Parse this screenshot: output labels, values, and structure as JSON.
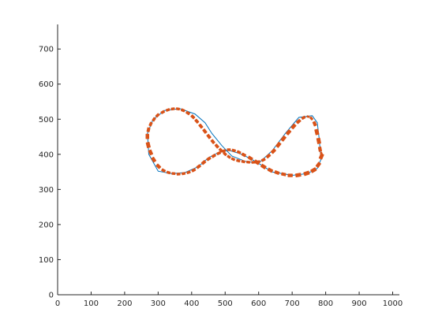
{
  "chart_data": {
    "type": "line",
    "title": "",
    "xlabel": "",
    "ylabel": "",
    "xlim": [
      0,
      1020
    ],
    "ylim": [
      0,
      770
    ],
    "xticks": [
      0,
      100,
      200,
      300,
      400,
      500,
      600,
      700,
      800,
      900,
      1000
    ],
    "yticks": [
      0,
      100,
      200,
      300,
      400,
      500,
      600,
      700
    ],
    "xtick_labels": [
      "0",
      "100",
      "200",
      "300",
      "400",
      "500",
      "600",
      "700",
      "800",
      "900",
      "1000"
    ],
    "ytick_labels": [
      "0",
      "100",
      "200",
      "300",
      "400",
      "500",
      "600",
      "700"
    ],
    "grid": false,
    "box": false,
    "series": [
      {
        "color": "#0072BD",
        "style": "line",
        "x": [
          790,
          775,
          745,
          700,
          640,
          590,
          550,
          510,
          480,
          450,
          420,
          380,
          340,
          300,
          272,
          268,
          285,
          320,
          365,
          410,
          440,
          460,
          490,
          520,
          560,
          600,
          640,
          680,
          720,
          760,
          775,
          780,
          785,
          790
        ],
        "y": [
          395,
          360,
          345,
          340,
          350,
          380,
          400,
          412,
          405,
          390,
          365,
          348,
          345,
          352,
          400,
          460,
          500,
          525,
          530,
          515,
          490,
          460,
          425,
          395,
          380,
          375,
          410,
          460,
          505,
          510,
          490,
          450,
          400,
          395
        ]
      },
      {
        "color": "#D95319",
        "style": "quiver",
        "note": "orange arrow field along the figure-eight",
        "x": [
          790,
          782,
          770,
          750,
          725,
          700,
          680,
          660,
          640,
          620,
          600,
          580,
          560,
          545,
          530,
          515,
          500,
          485,
          470,
          455,
          440,
          425,
          410,
          395,
          380,
          365,
          350,
          335,
          320,
          305,
          290,
          280,
          272,
          268,
          270,
          276,
          285,
          295,
          310,
          325,
          340,
          355,
          370,
          385,
          400,
          412,
          424,
          436,
          448,
          460,
          472,
          484,
          496,
          508,
          520,
          535,
          550,
          565,
          580,
          595,
          610,
          625,
          640,
          655,
          670,
          685,
          700,
          715,
          730,
          745,
          755,
          765,
          772,
          778,
          782,
          786
        ],
        "y": [
          400,
          375,
          358,
          348,
          342,
          340,
          342,
          346,
          352,
          362,
          374,
          386,
          396,
          404,
          410,
          413,
          411,
          405,
          398,
          390,
          380,
          368,
          357,
          350,
          346,
          344,
          345,
          347,
          352,
          362,
          380,
          400,
          420,
          445,
          465,
          482,
          496,
          508,
          518,
          525,
          529,
          530,
          527,
          520,
          510,
          498,
          484,
          470,
          455,
          440,
          427,
          415,
          404,
          395,
          388,
          383,
          380,
          378,
          377,
          378,
          382,
          392,
          405,
          422,
          440,
          458,
          475,
          490,
          502,
          508,
          505,
          492,
          470,
          445,
          420,
          405
        ],
        "u": [
          -10,
          -14,
          -22,
          -25,
          -25,
          -22,
          -20,
          -20,
          -20,
          -20,
          -20,
          -18,
          -16,
          -15,
          -15,
          -15,
          -15,
          -15,
          -15,
          -15,
          -15,
          -15,
          -15,
          -15,
          -15,
          -15,
          -15,
          -15,
          -15,
          -15,
          -12,
          -9,
          -6,
          0,
          4,
          7,
          9,
          12,
          14,
          15,
          15,
          15,
          15,
          14,
          13,
          12,
          12,
          12,
          12,
          12,
          12,
          12,
          12,
          12,
          14,
          15,
          15,
          15,
          15,
          15,
          15,
          15,
          15,
          15,
          15,
          15,
          15,
          15,
          14,
          10,
          9,
          8,
          6,
          5,
          4,
          4
        ],
        "v": [
          -22,
          -18,
          -12,
          -8,
          -4,
          0,
          4,
          7,
          10,
          12,
          12,
          11,
          9,
          7,
          4,
          0,
          -5,
          -7,
          -9,
          -10,
          -12,
          -11,
          -8,
          -5,
          -3,
          -1,
          1,
          4,
          8,
          14,
          18,
          20,
          24,
          22,
          18,
          15,
          13,
          11,
          8,
          5,
          2,
          -2,
          -6,
          -9,
          -12,
          -13,
          -14,
          -15,
          -15,
          -14,
          -13,
          -12,
          -10,
          -8,
          -6,
          -4,
          -3,
          -1,
          1,
          3,
          8,
          12,
          15,
          18,
          18,
          17,
          16,
          13,
          8,
          -2,
          -10,
          -18,
          -24,
          -25,
          -20,
          -10
        ]
      }
    ]
  }
}
